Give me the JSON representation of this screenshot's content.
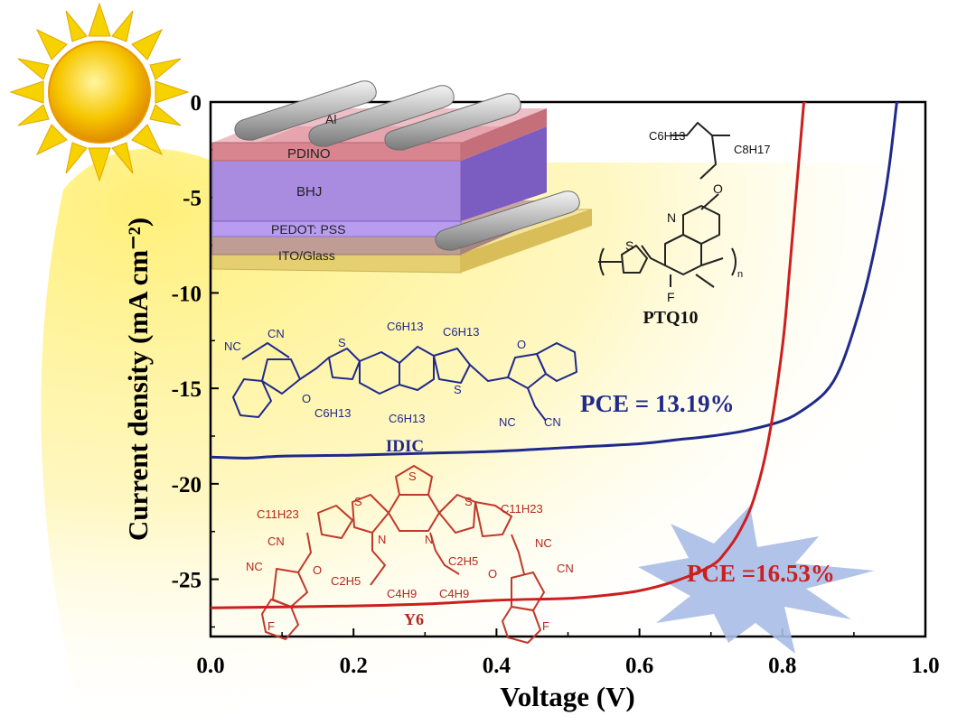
{
  "chart_data": {
    "type": "line",
    "title": "",
    "xlabel": "Voltage (V)",
    "ylabel": "Current density (mA cm⁻²)",
    "xlim": [
      0.0,
      1.0
    ],
    "ylim": [
      -28,
      0
    ],
    "x_ticks": [
      "0.0",
      "0.2",
      "0.4",
      "0.6",
      "0.8",
      "1.0"
    ],
    "y_ticks": [
      "0",
      "-5",
      "-10",
      "-15",
      "-20",
      "-25"
    ],
    "grid": false,
    "series": [
      {
        "name": "IDIC",
        "color": "#1f2a8c",
        "x": [
          0.0,
          0.05,
          0.1,
          0.2,
          0.3,
          0.4,
          0.5,
          0.6,
          0.65,
          0.7,
          0.75,
          0.8,
          0.83,
          0.86,
          0.88,
          0.9,
          0.92,
          0.94,
          0.95,
          0.96
        ],
        "y": [
          -18.6,
          -18.65,
          -18.55,
          -18.5,
          -18.4,
          -18.3,
          -18.1,
          -17.9,
          -17.7,
          -17.5,
          -17.2,
          -16.7,
          -16.1,
          -15.2,
          -14.0,
          -11.9,
          -9.2,
          -5.6,
          -3.2,
          0.0
        ]
      },
      {
        "name": "Y6",
        "color": "#cc1f1f",
        "x": [
          0.0,
          0.1,
          0.2,
          0.3,
          0.4,
          0.5,
          0.55,
          0.6,
          0.65,
          0.7,
          0.72,
          0.74,
          0.76,
          0.78,
          0.8,
          0.81,
          0.82,
          0.83
        ],
        "y": [
          -26.5,
          -26.45,
          -26.4,
          -26.3,
          -26.1,
          -26.0,
          -25.85,
          -25.6,
          -25.1,
          -24.3,
          -23.6,
          -22.5,
          -20.8,
          -17.8,
          -12.8,
          -8.8,
          -4.4,
          0.0
        ]
      }
    ],
    "annotations": [
      {
        "text": "PCE = 13.19%",
        "color": "#1f2a8c"
      },
      {
        "text": "PCE =16.53%",
        "color": "#cc1f1f"
      }
    ]
  },
  "device": {
    "layers": [
      "Al",
      "PDINO",
      "BHJ",
      "PEDOT: PSS",
      "ITO/Glass"
    ]
  },
  "molecules": {
    "donor": {
      "name": "PTQ10",
      "substituents": [
        "C6H13",
        "C8H17",
        "O",
        "N",
        "S",
        "F",
        "n"
      ]
    },
    "acceptor_1": {
      "name": "IDIC",
      "substituents": [
        "C6H13",
        "CN",
        "NC",
        "S",
        "O"
      ]
    },
    "acceptor_2": {
      "name": "Y6",
      "substituents": [
        "C11H23",
        "C2H5",
        "C4H9",
        "N",
        "S",
        "CN",
        "NC",
        "O",
        "F"
      ]
    }
  },
  "decor": {
    "sun_icon": "sun-icon",
    "starburst_icon": "starburst-icon"
  }
}
